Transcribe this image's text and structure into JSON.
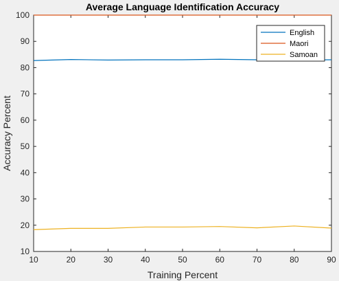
{
  "chart_data": {
    "type": "line",
    "title": "Average Language Identification Accuracy",
    "xlabel": "Training Percent",
    "ylabel": "Accuracy Percent",
    "xlim": [
      10,
      90
    ],
    "ylim": [
      10,
      100
    ],
    "xticks": [
      10,
      20,
      30,
      40,
      50,
      60,
      70,
      80,
      90
    ],
    "yticks": [
      10,
      20,
      30,
      40,
      50,
      60,
      70,
      80,
      90,
      100
    ],
    "grid": false,
    "legend_position": "top-right",
    "x": [
      10,
      20,
      30,
      40,
      50,
      60,
      70,
      80,
      90
    ],
    "series": [
      {
        "name": "English",
        "color": "#0072bd",
        "values": [
          82.7,
          83.1,
          82.9,
          83.0,
          83.0,
          83.2,
          83.0,
          82.9,
          83.0
        ]
      },
      {
        "name": "Maori",
        "color": "#d95319",
        "values": [
          100,
          100,
          100,
          100,
          100,
          100,
          100,
          100,
          100
        ]
      },
      {
        "name": "Samoan",
        "color": "#edb120",
        "values": [
          18.3,
          18.8,
          18.8,
          19.3,
          19.3,
          19.5,
          19.0,
          19.7,
          18.9
        ]
      }
    ]
  }
}
